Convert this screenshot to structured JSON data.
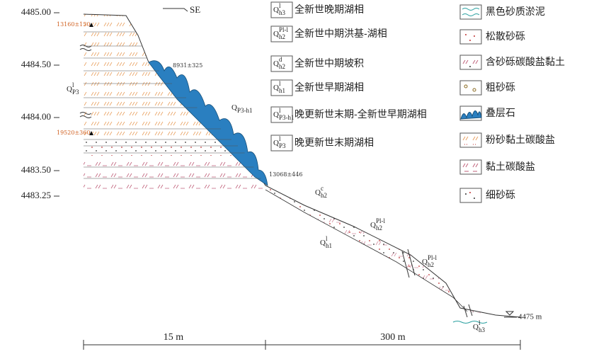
{
  "axis_labels": [
    "4485.00",
    "4484.50",
    "4484.00",
    "4483.50",
    "4483.25"
  ],
  "direction": "SE",
  "ages": [
    "13160±150",
    "8931±325",
    "19520±360",
    "13068±446"
  ],
  "legend_units": [
    {
      "symbol": {
        "base": "Q",
        "sup": "l",
        "sub": "h3"
      },
      "label": "全新世晚期湖相"
    },
    {
      "symbol": {
        "base": "Q",
        "sup": "Pl-l",
        "sub": "h2"
      },
      "label": "全新世中期洪基-湖相"
    },
    {
      "symbol": {
        "base": "Q",
        "sup": "d",
        "sub": "h2"
      },
      "label": "全新世中期坡积"
    },
    {
      "symbol": {
        "base": "Q",
        "sup": "l",
        "sub": "h1"
      },
      "label": "全新世早期湖相"
    },
    {
      "symbol": {
        "base": "Q",
        "sup": "l",
        "sub": "P3-h1"
      },
      "label": "晚更新世末期-全新世早期湖相"
    },
    {
      "symbol": {
        "base": "Q",
        "sup": "l",
        "sub": "P3"
      },
      "label": "晚更新世末期湖相"
    }
  ],
  "legend_lithology": [
    "黑色砂质淤泥",
    "松散砂砾",
    "含砂砾碳酸盐黏土",
    "粗砂砾",
    "叠层石",
    "粉砂黏土碳酸盐",
    "黏土碳酸盐",
    "细砂砾"
  ],
  "profile_units": [
    {
      "base": "Q",
      "sup": "l",
      "sub": "P3"
    },
    {
      "base": "Q",
      "sub": "P3-h1"
    },
    {
      "base": "Q",
      "sup": "c",
      "sub": "h2"
    },
    {
      "base": "Q",
      "sup": "Pl-l",
      "sub": "h2"
    },
    {
      "base": "Q",
      "sup": "l",
      "sub": "h1"
    },
    {
      "base": "Q",
      "sup": "Pl-l",
      "sub": "h2"
    },
    {
      "base": "Q",
      "sup": "l",
      "sub": "h3"
    }
  ],
  "scale": [
    "15 m",
    "300 m"
  ],
  "water_level": "4475 m"
}
